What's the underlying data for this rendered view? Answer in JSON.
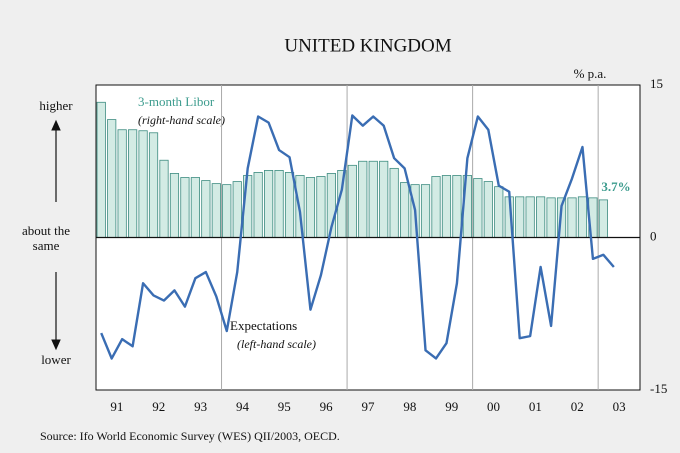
{
  "chart_data": {
    "type": "bar-line",
    "title": "UNITED KINGDOM",
    "y2_label": "% p.a.",
    "source": "Source: Ifo World Economic Survey (WES) QII/2003, OECD.",
    "xlim": [
      1991,
      2004
    ],
    "xticks": [
      {
        "value": 1991.5,
        "label": "91"
      },
      {
        "value": 1992.5,
        "label": "92"
      },
      {
        "value": 1993.5,
        "label": "93"
      },
      {
        "value": 1994.5,
        "label": "94"
      },
      {
        "value": 1995.5,
        "label": "95"
      },
      {
        "value": 1996.5,
        "label": "96"
      },
      {
        "value": 1997.5,
        "label": "97"
      },
      {
        "value": 1998.5,
        "label": "98"
      },
      {
        "value": 1999.5,
        "label": "99"
      },
      {
        "value": 2000.5,
        "label": "00"
      },
      {
        "value": 2001.5,
        "label": "01"
      },
      {
        "value": 2002.5,
        "label": "02"
      },
      {
        "value": 2003.5,
        "label": "03"
      }
    ],
    "xgrid": [
      1994,
      1997,
      2000,
      2003
    ],
    "ylim": [
      -15,
      15
    ],
    "yticks": [
      {
        "value": 13,
        "label": "higher"
      },
      {
        "value": 0,
        "label": "about the same"
      },
      {
        "value": -12,
        "label": "lower"
      }
    ],
    "y2lim": [
      -15,
      15
    ],
    "y2ticks": [
      15,
      0,
      -15
    ],
    "x": [
      1991.125,
      1991.375,
      1991.625,
      1991.875,
      1992.125,
      1992.375,
      1992.625,
      1992.875,
      1993.125,
      1993.375,
      1993.625,
      1993.875,
      1994.125,
      1994.375,
      1994.625,
      1994.875,
      1995.125,
      1995.375,
      1995.625,
      1995.875,
      1996.125,
      1996.375,
      1996.625,
      1996.875,
      1997.125,
      1997.375,
      1997.625,
      1997.875,
      1998.125,
      1998.375,
      1998.625,
      1998.875,
      1999.125,
      1999.375,
      1999.625,
      1999.875,
      2000.125,
      2000.375,
      2000.625,
      2000.875,
      2001.125,
      2001.375,
      2001.625,
      2001.875,
      2002.125,
      2002.375,
      2002.625,
      2002.875,
      2003.125,
      2003.375
    ],
    "series": [
      {
        "name": "3-month Libor",
        "note": "(right-hand scale)",
        "type": "bar",
        "axis": "y2",
        "color": "#d3ebe4",
        "edge": "#3d8c80",
        "values": [
          13.3,
          11.6,
          10.6,
          10.6,
          10.5,
          10.3,
          7.6,
          6.3,
          5.9,
          5.9,
          5.6,
          5.3,
          5.2,
          5.5,
          6.1,
          6.4,
          6.6,
          6.6,
          6.4,
          6.1,
          5.9,
          6.0,
          6.3,
          6.6,
          7.1,
          7.5,
          7.5,
          7.5,
          6.8,
          5.4,
          5.2,
          5.2,
          6.0,
          6.1,
          6.1,
          6.1,
          5.8,
          5.5,
          5.0,
          4.0,
          4.0,
          4.0,
          4.0,
          3.9,
          3.9,
          3.9,
          4.0,
          3.9,
          3.7,
          null
        ],
        "value_labels": [
          null,
          null,
          null,
          null,
          null,
          null,
          null,
          null,
          null,
          null,
          null,
          null,
          null,
          null,
          null,
          null,
          null,
          null,
          null,
          null,
          null,
          null,
          null,
          null,
          null,
          null,
          null,
          null,
          null,
          null,
          null,
          null,
          null,
          null,
          null,
          null,
          null,
          null,
          null,
          null,
          null,
          null,
          null,
          null,
          null,
          null,
          null,
          null,
          "3.7%",
          null
        ]
      },
      {
        "name": "Expectations",
        "note": "(left-hand scale)",
        "type": "line",
        "axis": "y",
        "color": "#3a6db3",
        "values": [
          -9.4,
          -11.9,
          -10.0,
          -10.7,
          -4.5,
          -5.7,
          -6.2,
          -5.2,
          -6.8,
          -4.0,
          -3.4,
          -5.8,
          -9.2,
          -3.4,
          6.8,
          11.9,
          11.3,
          8.6,
          7.9,
          2.5,
          -7.1,
          -3.7,
          1.0,
          4.7,
          12.0,
          11.0,
          11.9,
          11.0,
          7.8,
          6.8,
          2.7,
          -11.1,
          -11.9,
          -10.4,
          -4.5,
          7.8,
          11.9,
          10.6,
          5.1,
          4.5,
          -9.9,
          -9.7,
          -2.9,
          -8.7,
          3.1,
          5.8,
          8.9,
          -2.1,
          -1.7,
          -2.9
        ]
      }
    ]
  }
}
